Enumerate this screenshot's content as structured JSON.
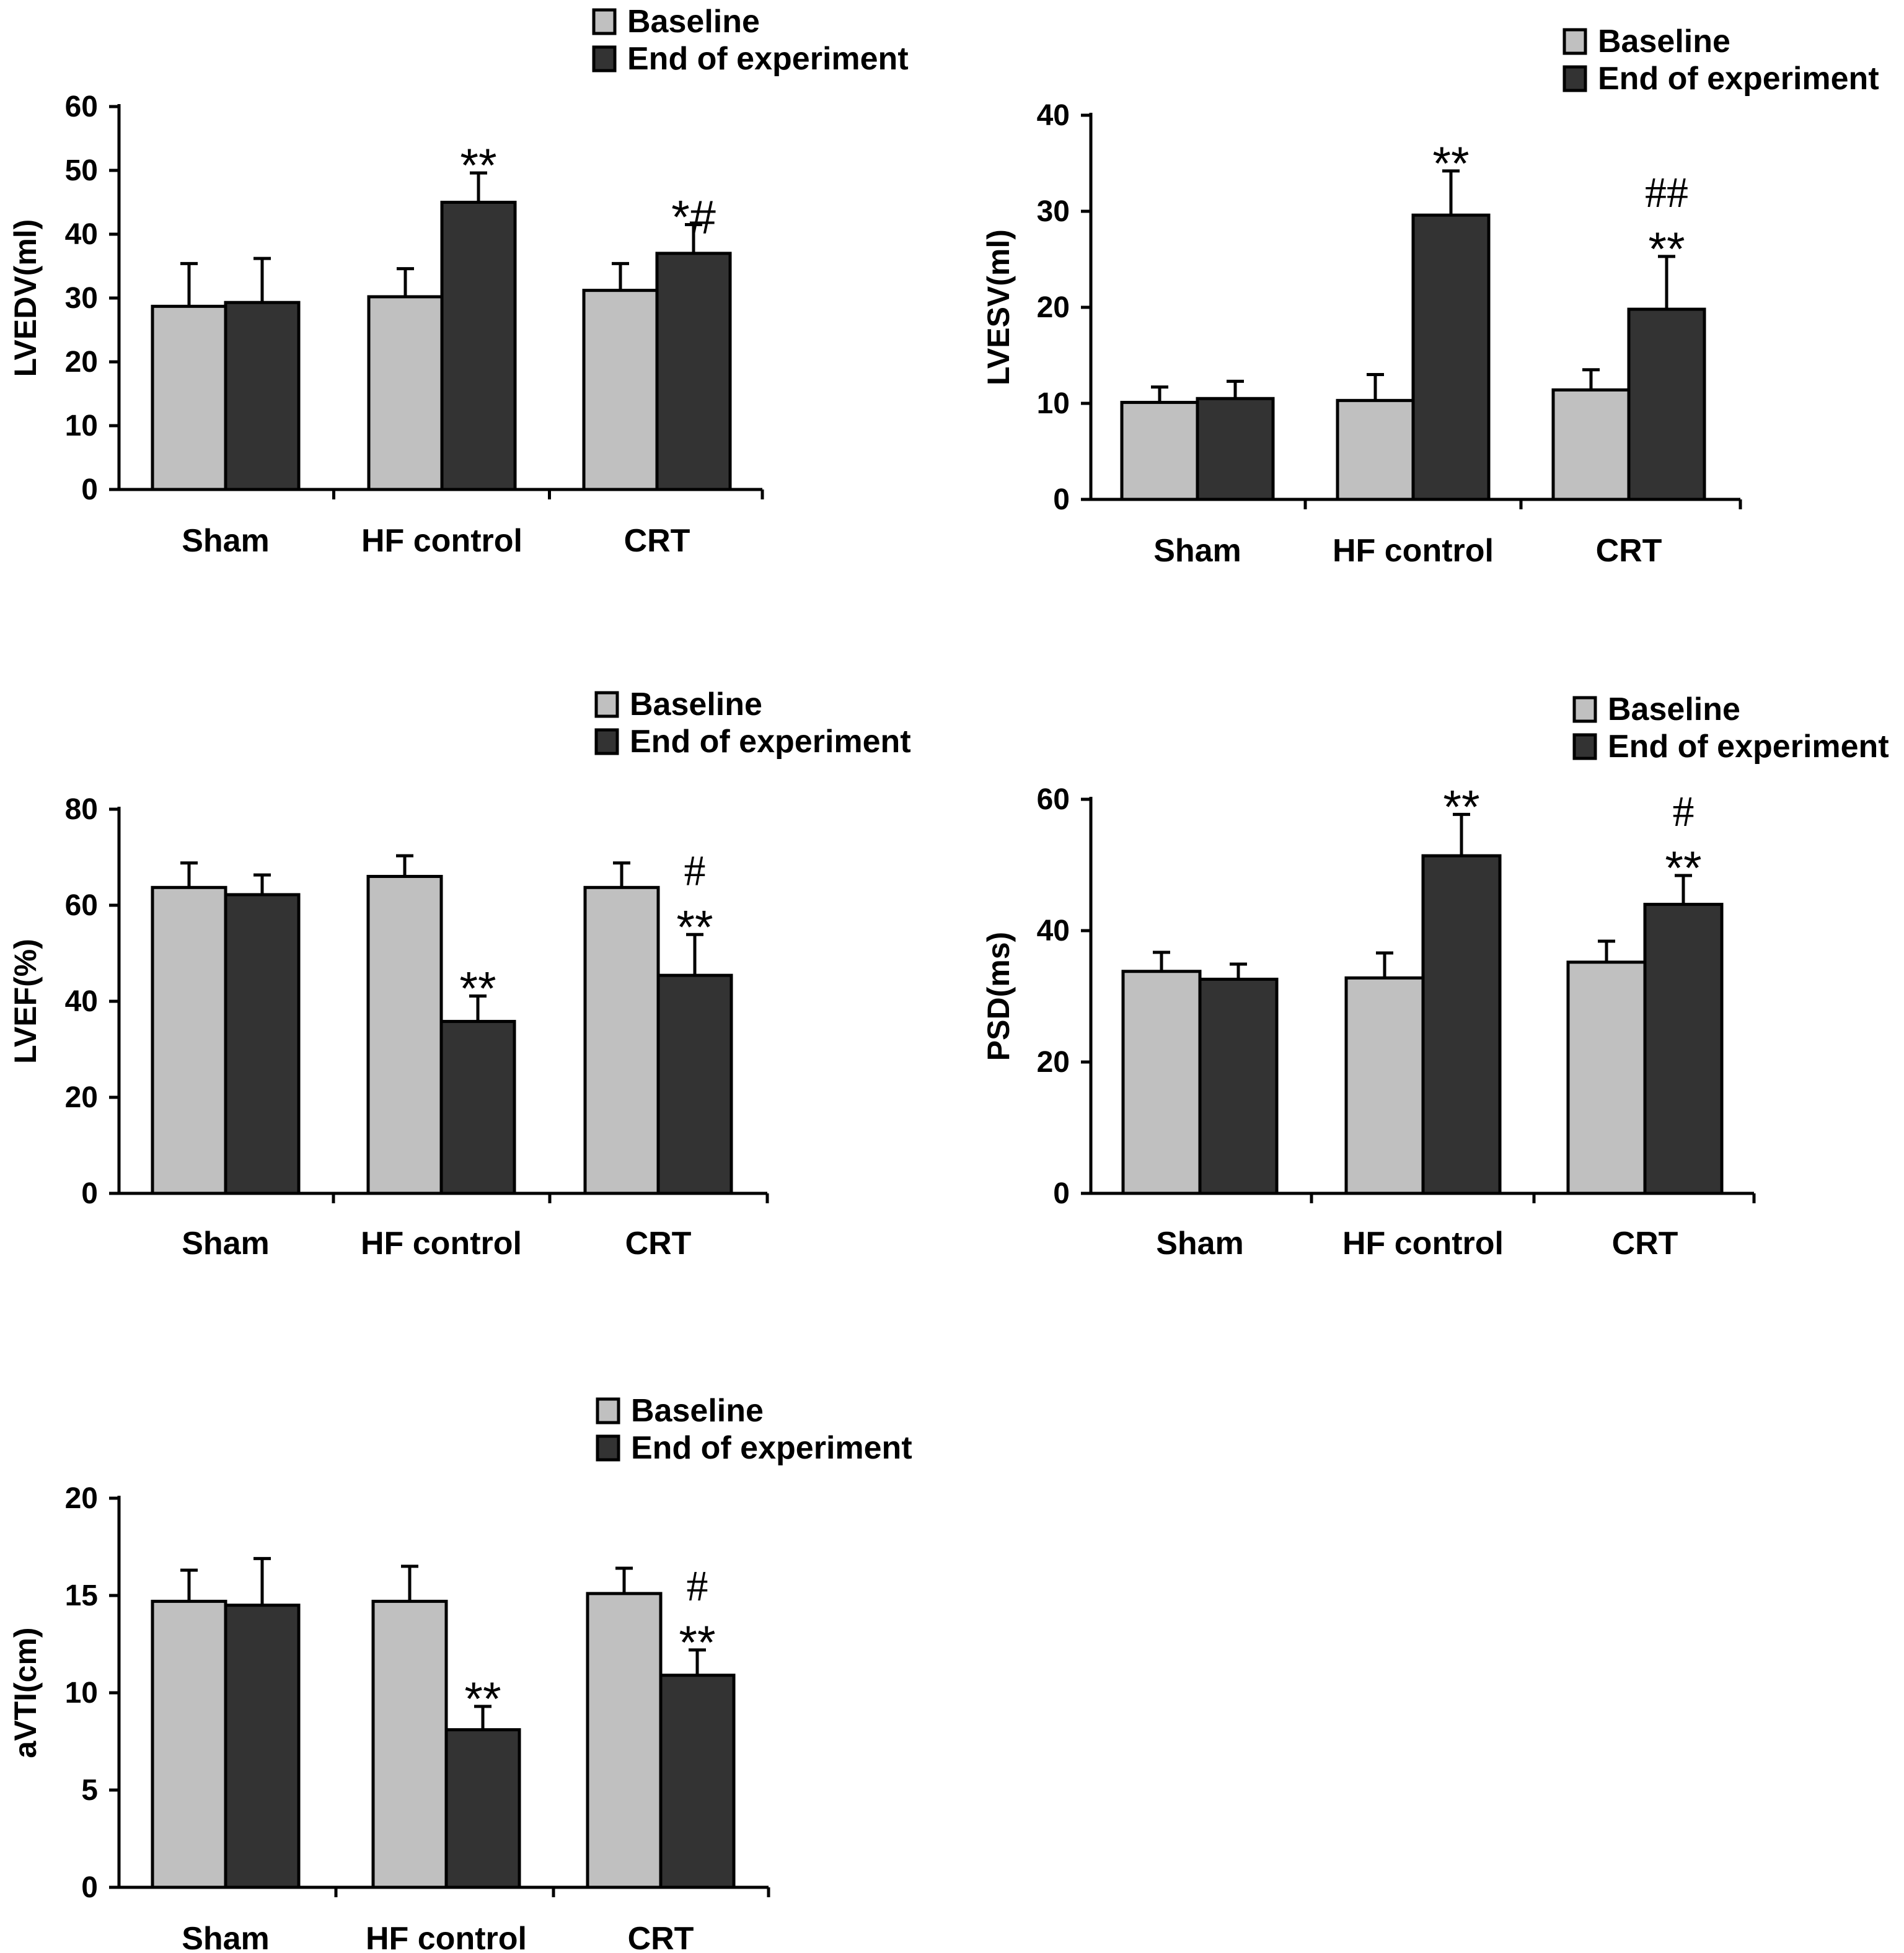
{
  "colors": {
    "baseline": "#c0c0c0",
    "end": "#333333",
    "stroke": "#000000"
  },
  "chart_data": [
    {
      "type": "bar",
      "ylabel": "LVEDV(ml)",
      "ylim": [
        0,
        60
      ],
      "yticks": [
        0,
        10,
        20,
        30,
        40,
        50,
        60
      ],
      "categories": [
        "Sham",
        "HF control",
        "CRT"
      ],
      "legend": [
        "Baseline",
        "End of experiment"
      ],
      "series": [
        {
          "name": "Baseline",
          "values": [
            28.7,
            30.2,
            31.2
          ],
          "errors": [
            6.7,
            4.4,
            4.2
          ],
          "annotations": [
            "",
            "",
            ""
          ]
        },
        {
          "name": "End of experiment",
          "values": [
            29.3,
            45.0,
            37.0
          ],
          "errors": [
            6.9,
            4.6,
            4.5
          ],
          "annotations": [
            "",
            "**",
            "*#"
          ]
        }
      ]
    },
    {
      "type": "bar",
      "ylabel": "LVESV(ml)",
      "ylim": [
        0,
        40
      ],
      "yticks": [
        0,
        10,
        20,
        30,
        40
      ],
      "categories": [
        "Sham",
        "HF control",
        "CRT"
      ],
      "legend": [
        "Baseline",
        "End of experiment"
      ],
      "series": [
        {
          "name": "Baseline",
          "values": [
            10.1,
            10.3,
            11.4
          ],
          "errors": [
            1.6,
            2.7,
            2.1
          ],
          "annotations": [
            "",
            "",
            ""
          ]
        },
        {
          "name": "End of experiment",
          "values": [
            10.5,
            29.6,
            19.8
          ],
          "errors": [
            1.8,
            4.6,
            5.5
          ],
          "annotations": [
            "",
            "**",
            "##\n**"
          ]
        }
      ]
    },
    {
      "type": "bar",
      "ylabel": "LVEF(%)",
      "ylim": [
        0,
        80
      ],
      "yticks": [
        0,
        20,
        40,
        60,
        80
      ],
      "categories": [
        "Sham",
        "HF control",
        "CRT"
      ],
      "legend": [
        "Baseline",
        "End of experiment"
      ],
      "series": [
        {
          "name": "Baseline",
          "values": [
            63.7,
            66.0,
            63.7
          ],
          "errors": [
            5.1,
            4.3,
            5.1
          ],
          "annotations": [
            "",
            "",
            ""
          ]
        },
        {
          "name": "End of experiment",
          "values": [
            62.2,
            35.8,
            45.4
          ],
          "errors": [
            4.1,
            5.3,
            8.5
          ],
          "annotations": [
            "",
            "**",
            "#\n**"
          ]
        }
      ]
    },
    {
      "type": "bar",
      "ylabel": "PSD(ms)",
      "ylim": [
        0,
        60
      ],
      "yticks": [
        0,
        20,
        40,
        60
      ],
      "categories": [
        "Sham",
        "HF control",
        "CRT"
      ],
      "legend": [
        "Baseline",
        "End of experiment"
      ],
      "series": [
        {
          "name": "Baseline",
          "values": [
            33.8,
            32.8,
            35.2
          ],
          "errors": [
            2.9,
            3.8,
            3.2
          ],
          "annotations": [
            "",
            "",
            ""
          ]
        },
        {
          "name": "End of experiment",
          "values": [
            32.6,
            51.4,
            44.0
          ],
          "errors": [
            2.3,
            6.3,
            4.4
          ],
          "annotations": [
            "",
            "**",
            "#\n**"
          ]
        }
      ]
    },
    {
      "type": "bar",
      "ylabel": "aVTI(cm)",
      "ylim": [
        0,
        20
      ],
      "yticks": [
        0,
        5,
        10,
        15,
        20
      ],
      "categories": [
        "Sham",
        "HF control",
        "CRT"
      ],
      "legend": [
        "Baseline",
        "End of experiment"
      ],
      "series": [
        {
          "name": "Baseline",
          "values": [
            14.7,
            14.7,
            15.1
          ],
          "errors": [
            1.6,
            1.8,
            1.3
          ],
          "annotations": [
            "",
            "",
            ""
          ]
        },
        {
          "name": "End of experiment",
          "values": [
            14.5,
            8.1,
            10.9
          ],
          "errors": [
            2.4,
            1.2,
            1.3
          ],
          "annotations": [
            "",
            "**",
            "#\n**"
          ]
        }
      ]
    }
  ]
}
